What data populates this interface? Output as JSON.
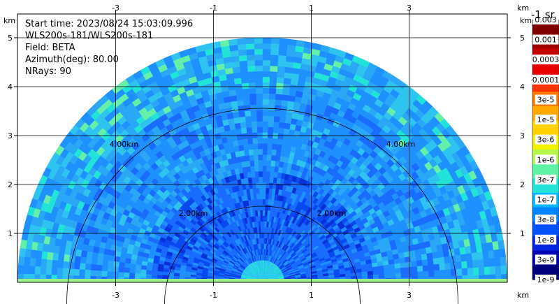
{
  "chart_data": {
    "type": "heatmap",
    "subtype": "PPI radar/lidar sector scan",
    "info": {
      "start_time": "Start time: 2023/08/24 15:03:09.996",
      "instrument": "WLS200s-181/WLS200s-181",
      "field": "Field: BETA",
      "azimuth": "Azimuth(deg): 80.00",
      "nrays": "NRays: 90"
    },
    "x_axis": {
      "unit": "km",
      "range": [
        -5,
        5
      ],
      "ticks": [
        -3,
        -1,
        1,
        3
      ],
      "tick_labels": [
        "-3",
        "-1",
        "1",
        "3"
      ]
    },
    "y_axis": {
      "unit": "km",
      "range": [
        0,
        5.5
      ],
      "ticks": [
        1,
        2,
        3,
        4,
        5
      ],
      "tick_labels": [
        "1",
        "2",
        "3",
        "4",
        "5"
      ]
    },
    "max_range_km": 5,
    "range_rings": [
      {
        "radius_km": 2,
        "label": "2.00km"
      },
      {
        "radius_km": 4,
        "label": "4.00km"
      }
    ],
    "grid": true,
    "colorbar": {
      "title": "-1 sr",
      "labels": [
        "0.003",
        "0.001",
        "0.0003",
        "0.0001",
        "3e-5",
        "1e-5",
        "3e-6",
        "1e-6",
        "3e-7",
        "1e-7",
        "3e-8",
        "1e-8",
        "3e-9",
        "1e-9"
      ],
      "colors": [
        "#7f0000",
        "#a00000",
        "#c40000",
        "#e60000",
        "#ff3300",
        "#ff7a00",
        "#ffa800",
        "#ffd200",
        "#f2f200",
        "#b8f54a",
        "#5ff2a4",
        "#22e3d8",
        "#00b8ff",
        "#0084ff",
        "#0050ff",
        "#0026e0",
        "#0000b0",
        "#00007a"
      ]
    },
    "dominant_colors": [
      "#1a6cff",
      "#1f90ff",
      "#0a48f0",
      "#2fc4f0",
      "#22e3d8",
      "#64f0a8"
    ]
  }
}
